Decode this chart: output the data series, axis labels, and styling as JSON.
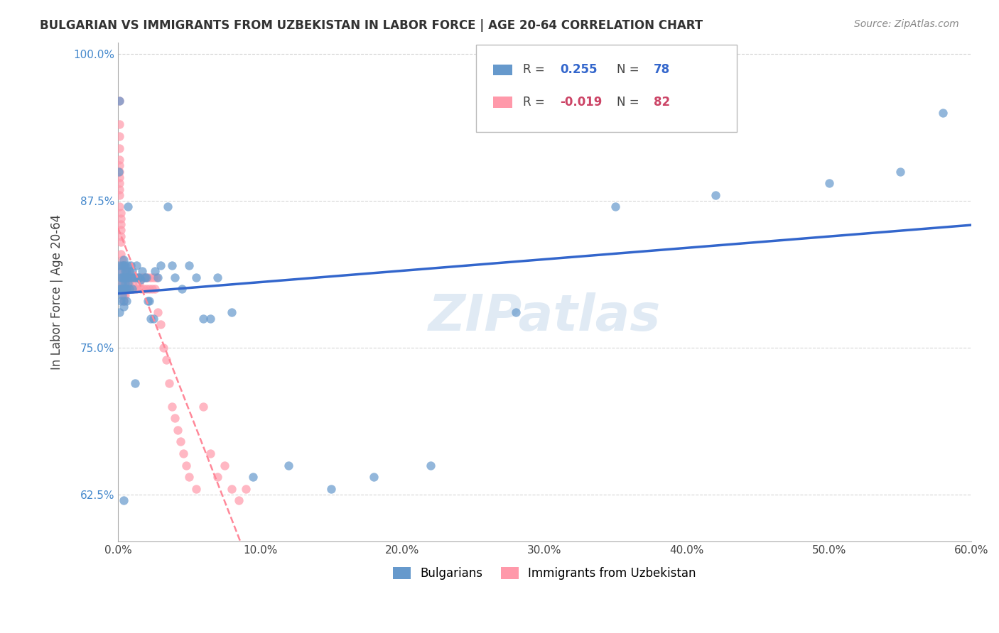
{
  "title": "BULGARIAN VS IMMIGRANTS FROM UZBEKISTAN IN LABOR FORCE | AGE 20-64 CORRELATION CHART",
  "source": "Source: ZipAtlas.com",
  "ylabel": "In Labor Force | Age 20-64",
  "xlabel": "",
  "xlim": [
    0.0,
    0.6
  ],
  "ylim": [
    0.585,
    1.01
  ],
  "yticks": [
    0.625,
    0.75,
    0.875,
    1.0
  ],
  "ytick_labels": [
    "62.5%",
    "75.0%",
    "87.5%",
    "100.0%"
  ],
  "xticks": [
    0.0,
    0.1,
    0.2,
    0.3,
    0.4,
    0.5,
    0.6
  ],
  "xtick_labels": [
    "0.0%",
    "10.0%",
    "20.0%",
    "30.0%",
    "40.0%",
    "50.0%",
    "60.0%"
  ],
  "blue_color": "#6699CC",
  "pink_color": "#FF99AA",
  "trend_blue": "#3366CC",
  "trend_pink": "#FF8899",
  "legend_r_blue": "0.255",
  "legend_n_blue": "78",
  "legend_r_pink": "-0.019",
  "legend_n_pink": "82",
  "bulgarians_x": [
    0.001,
    0.001,
    0.001,
    0.002,
    0.002,
    0.002,
    0.002,
    0.003,
    0.003,
    0.003,
    0.003,
    0.003,
    0.004,
    0.004,
    0.004,
    0.004,
    0.004,
    0.004,
    0.005,
    0.005,
    0.005,
    0.005,
    0.005,
    0.006,
    0.006,
    0.006,
    0.006,
    0.007,
    0.007,
    0.007,
    0.008,
    0.008,
    0.009,
    0.009,
    0.01,
    0.01,
    0.011,
    0.012,
    0.013,
    0.014,
    0.015,
    0.016,
    0.017,
    0.019,
    0.02,
    0.021,
    0.022,
    0.023,
    0.025,
    0.026,
    0.028,
    0.03,
    0.035,
    0.038,
    0.04,
    0.045,
    0.05,
    0.055,
    0.06,
    0.065,
    0.07,
    0.08,
    0.095,
    0.12,
    0.15,
    0.18,
    0.22,
    0.28,
    0.35,
    0.42,
    0.5,
    0.55,
    0.58,
    0.001,
    0.0005,
    0.007,
    0.012,
    0.004
  ],
  "bulgarians_y": [
    0.78,
    0.8,
    0.82,
    0.81,
    0.8,
    0.815,
    0.79,
    0.8,
    0.82,
    0.81,
    0.805,
    0.795,
    0.825,
    0.8,
    0.81,
    0.82,
    0.79,
    0.785,
    0.815,
    0.805,
    0.8,
    0.81,
    0.82,
    0.81,
    0.8,
    0.815,
    0.79,
    0.82,
    0.805,
    0.81,
    0.8,
    0.815,
    0.81,
    0.82,
    0.815,
    0.8,
    0.81,
    0.81,
    0.82,
    0.81,
    0.81,
    0.808,
    0.815,
    0.81,
    0.81,
    0.79,
    0.79,
    0.775,
    0.775,
    0.815,
    0.81,
    0.82,
    0.87,
    0.82,
    0.81,
    0.8,
    0.82,
    0.81,
    0.775,
    0.775,
    0.81,
    0.78,
    0.64,
    0.65,
    0.63,
    0.64,
    0.65,
    0.78,
    0.87,
    0.88,
    0.89,
    0.9,
    0.95,
    0.96,
    0.9,
    0.87,
    0.72,
    0.62
  ],
  "uzbekistan_x": [
    0.001,
    0.001,
    0.001,
    0.001,
    0.001,
    0.001,
    0.001,
    0.001,
    0.001,
    0.001,
    0.001,
    0.001,
    0.002,
    0.002,
    0.002,
    0.002,
    0.002,
    0.002,
    0.002,
    0.003,
    0.003,
    0.003,
    0.003,
    0.003,
    0.003,
    0.004,
    0.004,
    0.004,
    0.004,
    0.004,
    0.005,
    0.005,
    0.005,
    0.005,
    0.006,
    0.006,
    0.006,
    0.007,
    0.007,
    0.008,
    0.008,
    0.009,
    0.009,
    0.01,
    0.01,
    0.011,
    0.012,
    0.013,
    0.014,
    0.015,
    0.016,
    0.017,
    0.018,
    0.019,
    0.02,
    0.021,
    0.022,
    0.023,
    0.024,
    0.025,
    0.026,
    0.027,
    0.028,
    0.03,
    0.032,
    0.034,
    0.036,
    0.038,
    0.04,
    0.042,
    0.044,
    0.046,
    0.048,
    0.05,
    0.055,
    0.06,
    0.065,
    0.07,
    0.075,
    0.08,
    0.085,
    0.09
  ],
  "uzbekistan_y": [
    0.96,
    0.94,
    0.93,
    0.92,
    0.91,
    0.905,
    0.9,
    0.895,
    0.89,
    0.885,
    0.88,
    0.87,
    0.865,
    0.86,
    0.855,
    0.85,
    0.845,
    0.84,
    0.83,
    0.825,
    0.82,
    0.815,
    0.81,
    0.805,
    0.8,
    0.81,
    0.805,
    0.8,
    0.795,
    0.79,
    0.815,
    0.81,
    0.8,
    0.795,
    0.81,
    0.805,
    0.8,
    0.81,
    0.8,
    0.815,
    0.805,
    0.81,
    0.8,
    0.81,
    0.805,
    0.8,
    0.81,
    0.8,
    0.81,
    0.805,
    0.8,
    0.81,
    0.8,
    0.81,
    0.8,
    0.81,
    0.8,
    0.81,
    0.8,
    0.81,
    0.8,
    0.81,
    0.78,
    0.77,
    0.75,
    0.74,
    0.72,
    0.7,
    0.69,
    0.68,
    0.67,
    0.66,
    0.65,
    0.64,
    0.63,
    0.7,
    0.66,
    0.64,
    0.65,
    0.63,
    0.62,
    0.63
  ],
  "watermark": "ZIPatlas",
  "watermark_color": "#CCDDEE",
  "background_color": "#FFFFFF",
  "grid_color": "#CCCCCC"
}
